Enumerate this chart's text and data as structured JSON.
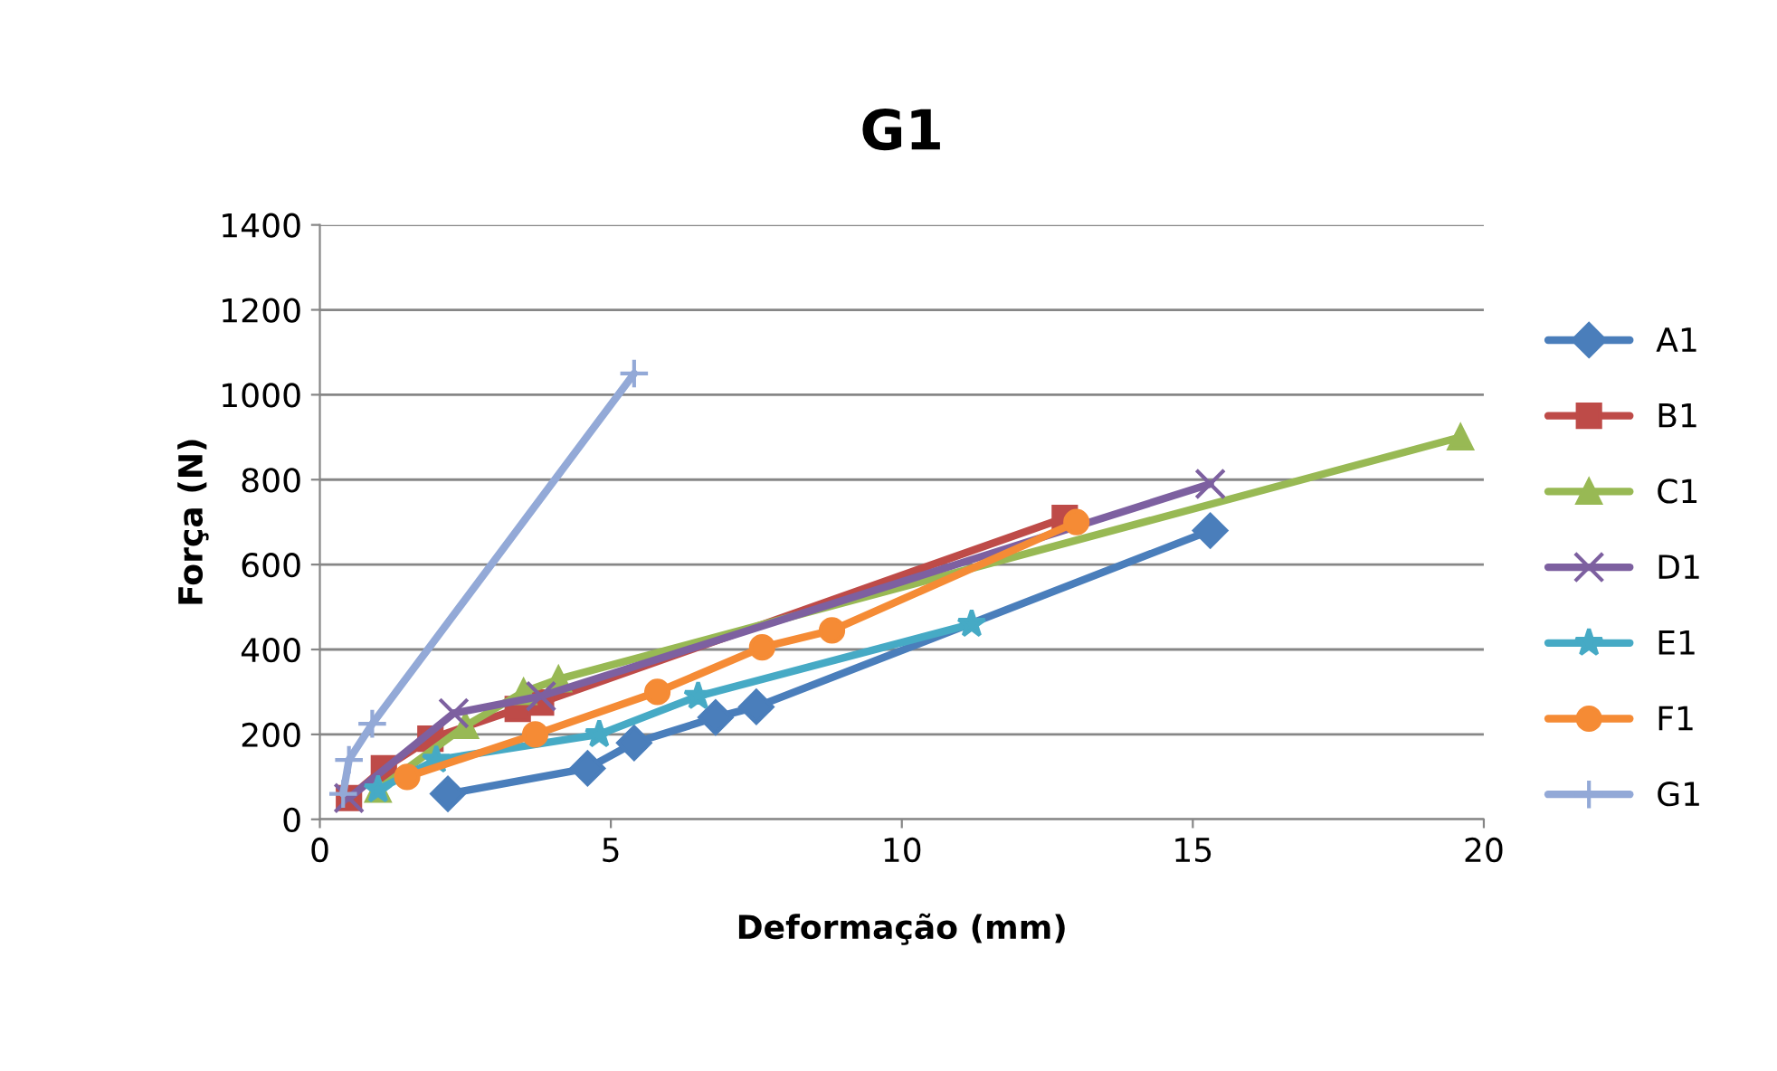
{
  "chart_data": {
    "type": "line",
    "title": "G1",
    "xlabel": "Deformação (mm)",
    "ylabel": "Força (N)",
    "xlim": [
      0,
      20
    ],
    "xticks": [
      0,
      5,
      10,
      15,
      20
    ],
    "ylim": [
      0,
      1400
    ],
    "yticks": [
      0,
      200,
      400,
      600,
      800,
      1000,
      1200,
      1400
    ],
    "grid": "y",
    "legend": "right",
    "series": [
      {
        "name": "A1",
        "color": "#4a7ebb",
        "marker": "diamond",
        "x": [
          2.2,
          4.6,
          5.4,
          6.8,
          7.5,
          15.3
        ],
        "values": [
          60,
          120,
          180,
          240,
          265,
          680
        ]
      },
      {
        "name": "B1",
        "color": "#be4b48",
        "marker": "square",
        "x": [
          0.5,
          1.1,
          1.9,
          3.4,
          3.8,
          12.8
        ],
        "values": [
          50,
          120,
          190,
          260,
          275,
          710
        ]
      },
      {
        "name": "C1",
        "color": "#98b954",
        "marker": "triangle",
        "x": [
          1.0,
          2.5,
          3.5,
          4.1,
          19.6
        ],
        "values": [
          70,
          220,
          300,
          330,
          900
        ]
      },
      {
        "name": "D1",
        "color": "#7d60a0",
        "marker": "cross",
        "x": [
          0.5,
          2.3,
          3.8,
          15.3
        ],
        "values": [
          50,
          250,
          290,
          790
        ]
      },
      {
        "name": "E1",
        "color": "#46aac5",
        "marker": "star",
        "x": [
          1.0,
          2.0,
          4.8,
          6.5,
          11.2
        ],
        "values": [
          70,
          140,
          200,
          290,
          460
        ]
      },
      {
        "name": "F1",
        "color": "#f58b35",
        "marker": "circle",
        "x": [
          1.5,
          3.7,
          5.8,
          7.6,
          8.8,
          13.0
        ],
        "values": [
          100,
          200,
          300,
          405,
          445,
          700
        ]
      },
      {
        "name": "G1",
        "color": "#93a9d7",
        "marker": "plus",
        "x": [
          0.4,
          0.5,
          0.9,
          5.4
        ],
        "values": [
          60,
          140,
          225,
          1050
        ]
      }
    ]
  }
}
